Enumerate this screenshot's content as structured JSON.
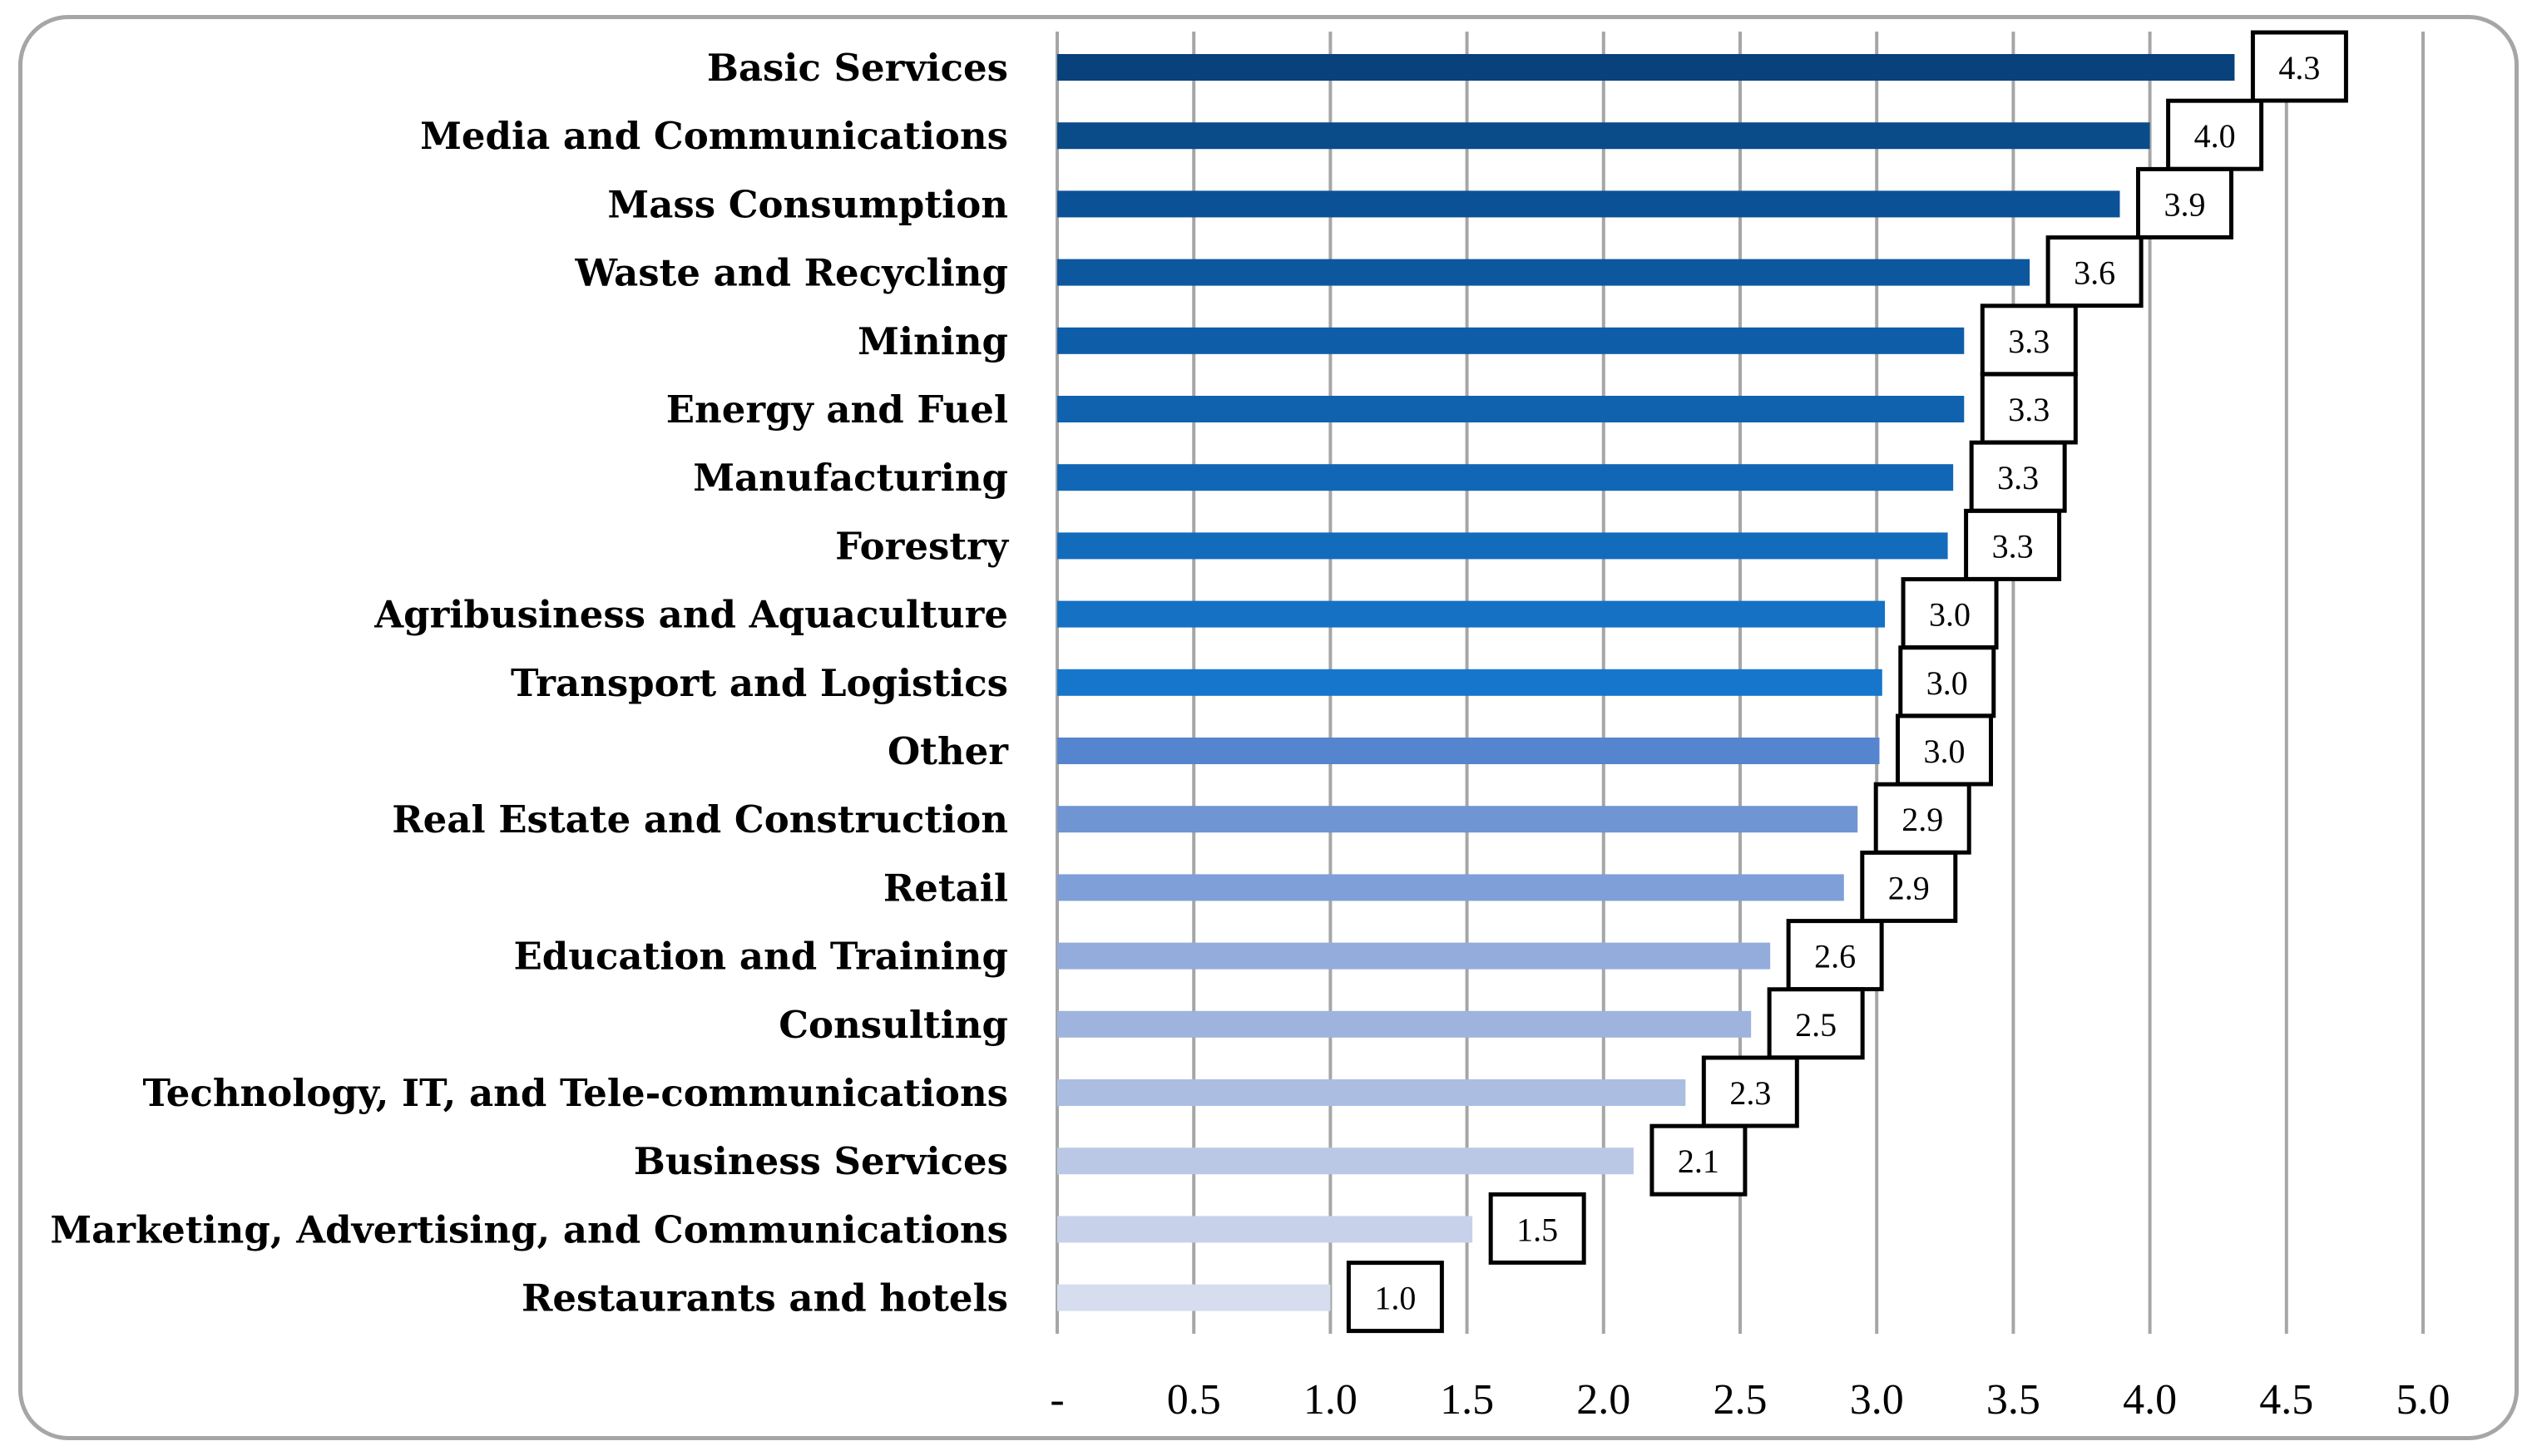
{
  "chart_data": {
    "type": "bar",
    "orientation": "horizontal",
    "title": "",
    "xlabel": "",
    "ylabel": "",
    "xlim": [
      0,
      5
    ],
    "grid": "vertical",
    "categories": [
      "Basic Services",
      "Media and Communications",
      "Mass Consumption",
      "Waste and Recycling",
      "Mining",
      "Energy and Fuel",
      "Manufacturing",
      "Forestry",
      "Agribusiness and Aquaculture",
      "Transport and Logistics",
      "Other",
      "Real Estate and Construction",
      "Retail",
      "Education and Training",
      "Consulting",
      "Technology, IT, and Tele-communications",
      "Business Services",
      "Marketing, Advertising, and Communications",
      "Restaurants and hotels"
    ],
    "values": [
      4.31,
      4.0,
      3.89,
      3.56,
      3.32,
      3.32,
      3.28,
      3.26,
      3.03,
      3.02,
      3.01,
      2.93,
      2.88,
      2.61,
      2.54,
      2.3,
      2.11,
      1.52,
      1.0
    ],
    "data_labels": [
      "4.3",
      "4.0",
      "3.9",
      "3.6",
      "3.3",
      "3.3",
      "3.3",
      "3.3",
      "3.0",
      "3.0",
      "3.0",
      "2.9",
      "2.9",
      "2.6",
      "2.5",
      "2.3",
      "2.1",
      "1.5",
      "1.0"
    ],
    "colors": [
      "#08417b",
      "#0a4b8a",
      "#0b5196",
      "#0d579f",
      "#0e5da8",
      "#1062ae",
      "#1167b5",
      "#136bbb",
      "#1471c4",
      "#1676cb",
      "#5485ce",
      "#6f95d3",
      "#7f9fd8",
      "#93acdc",
      "#9eb3dd",
      "#acbde2",
      "#bac8e6",
      "#c7d2ea",
      "#d5ddee"
    ],
    "x_ticks": [
      0,
      0.5,
      1.0,
      1.5,
      2.0,
      2.5,
      3.0,
      3.5,
      4.0,
      4.5,
      5.0
    ],
    "x_tick_labels": [
      "-",
      "0.5",
      "1.0",
      "1.5",
      "2.0",
      "2.5",
      "3.0",
      "3.5",
      "4.0",
      "4.5",
      "5.0"
    ],
    "gridline_color": "#a6a6a6",
    "label_box_color": "#000000"
  }
}
